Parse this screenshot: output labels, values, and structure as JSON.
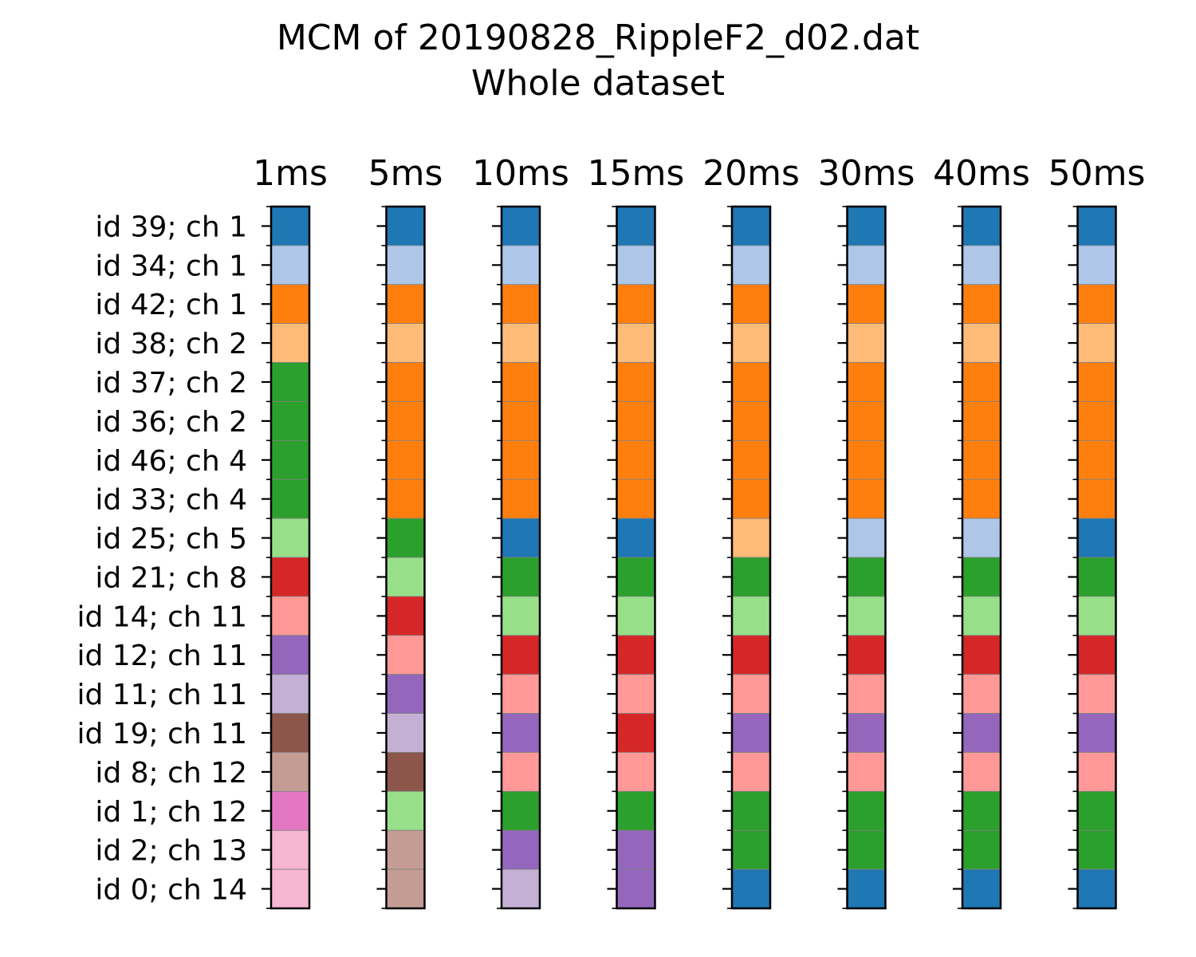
{
  "chart_data": {
    "type": "heatmap",
    "title": "MCM of 20190828_RippleF2_d02.dat",
    "subtitle": "Whole dataset",
    "columns": [
      "1ms",
      "5ms",
      "10ms",
      "15ms",
      "20ms",
      "30ms",
      "40ms",
      "50ms"
    ],
    "rows": [
      "id 39; ch 1",
      "id 34; ch 1",
      "id 42; ch 1",
      "id 38; ch 2",
      "id 37; ch 2",
      "id 36; ch 2",
      "id 46; ch 4",
      "id 33; ch 4",
      "id 25; ch 5",
      "id 21; ch 8",
      "id 14; ch 11",
      "id 12; ch 11",
      "id 11; ch 11",
      "id 19; ch 11",
      "id 8; ch 12",
      "id 1; ch 12",
      "id 2; ch 13",
      "id 0; ch 14"
    ],
    "palette": [
      "#1f77b4",
      "#aec7e8",
      "#ff7f0e",
      "#ffbb78",
      "#2ca02c",
      "#98df8a",
      "#d62728",
      "#ff9896",
      "#9467bd",
      "#c5b0d5",
      "#8c564b",
      "#c49c94",
      "#e377c2",
      "#f7b6d2"
    ],
    "cluster_index": [
      [
        0,
        1,
        2,
        3,
        4,
        4,
        4,
        4,
        5,
        6,
        7,
        8,
        9,
        10,
        11,
        12,
        13,
        13
      ],
      [
        0,
        1,
        2,
        3,
        2,
        2,
        2,
        2,
        4,
        5,
        6,
        7,
        8,
        9,
        10,
        5,
        11,
        11
      ],
      [
        0,
        1,
        2,
        3,
        2,
        2,
        2,
        2,
        0,
        4,
        5,
        6,
        7,
        8,
        7,
        4,
        8,
        9
      ],
      [
        0,
        1,
        2,
        3,
        2,
        2,
        2,
        2,
        0,
        4,
        5,
        6,
        7,
        6,
        7,
        4,
        8,
        8
      ],
      [
        0,
        1,
        2,
        3,
        2,
        2,
        2,
        2,
        3,
        4,
        5,
        6,
        7,
        8,
        7,
        4,
        4,
        0
      ],
      [
        0,
        1,
        2,
        3,
        2,
        2,
        2,
        2,
        1,
        4,
        5,
        6,
        7,
        8,
        7,
        4,
        4,
        0
      ],
      [
        0,
        1,
        2,
        3,
        2,
        2,
        2,
        2,
        1,
        4,
        5,
        6,
        7,
        8,
        7,
        4,
        4,
        0
      ],
      [
        0,
        1,
        2,
        3,
        2,
        2,
        2,
        2,
        0,
        4,
        5,
        6,
        7,
        8,
        7,
        4,
        4,
        0
      ]
    ],
    "grid": false,
    "legend": "none"
  }
}
